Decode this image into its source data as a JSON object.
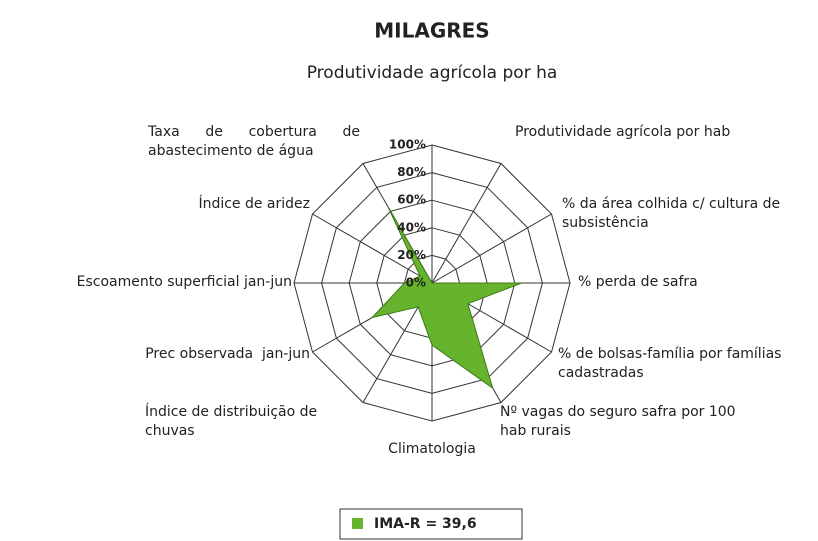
{
  "chart_data": {
    "type": "radar",
    "title": "MILAGRES",
    "categories": [
      "Produtividade agrícola por ha",
      "Produtividade agrícola por hab",
      "% da área colhida c/ cultura de subsistência",
      "% perda de safra",
      "% de bolsas-família por famílias cadastradas",
      "Nº vagas do seguro safra por 100 hab rurais",
      "Climatologia",
      "Índice de distribuição de chuvas",
      "Prec observada  jan-jun",
      "Escoamento superficial jan-jun",
      "Índice de aridez",
      "Taxa de cobertura de abastecimento de água"
    ],
    "series": [
      {
        "name": "IMA-R = 39,6",
        "color": "#66b32e",
        "values": [
          0,
          0,
          0,
          65,
          30,
          88,
          45,
          20,
          50,
          20,
          10,
          64
        ]
      }
    ],
    "ylim": [
      0,
      100
    ],
    "yticks": [
      {
        "value": 0,
        "label": "0%"
      },
      {
        "value": 20,
        "label": "20%"
      },
      {
        "value": 40,
        "label": "40%"
      },
      {
        "value": 60,
        "label": "60%"
      },
      {
        "value": 80,
        "label": "80%"
      },
      {
        "value": 100,
        "label": "100%"
      }
    ],
    "grid": true
  }
}
